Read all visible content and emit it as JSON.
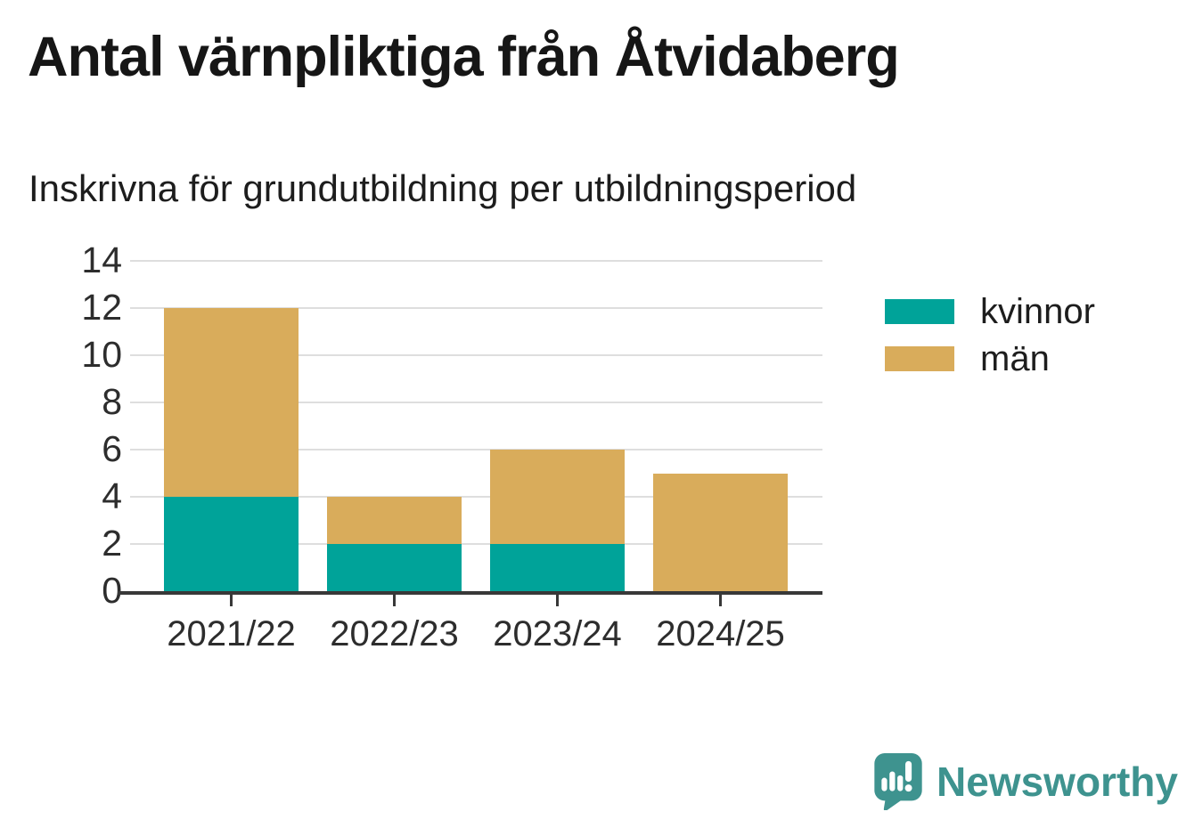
{
  "title": "Antal värnpliktiga från Åtvidaberg",
  "subtitle": "Inskrivna för grundutbildning per utbildningsperiod",
  "chart_data": {
    "type": "bar",
    "stacked": true,
    "title": "Antal värnpliktiga från Åtvidaberg",
    "subtitle": "Inskrivna för grundutbildning per utbildningsperiod",
    "categories": [
      "2021/22",
      "2022/23",
      "2023/24",
      "2024/25"
    ],
    "series": [
      {
        "name": "kvinnor",
        "color": "#00a399",
        "values": [
          4,
          2,
          2,
          0
        ]
      },
      {
        "name": "män",
        "color": "#d9ac5b",
        "values": [
          8,
          2,
          4,
          5
        ]
      }
    ],
    "totals": [
      12,
      4,
      6,
      5
    ],
    "yticks": [
      0,
      2,
      4,
      6,
      8,
      10,
      12,
      14
    ],
    "ylim": [
      0,
      14
    ],
    "xlabel": "",
    "ylabel": "",
    "grid": true,
    "legend_position": "right"
  },
  "colors": {
    "kvinnor": "#00a399",
    "man": "#d9ac5b",
    "gridline": "#dedede",
    "axis": "#383838",
    "tick_text": "#2d2d2d",
    "title_text": "#161616",
    "brand": "#3e938f"
  },
  "branding": {
    "logo_text": "Newsworthy",
    "logo_icon": "speech-bubble-bar-chart-icon"
  }
}
